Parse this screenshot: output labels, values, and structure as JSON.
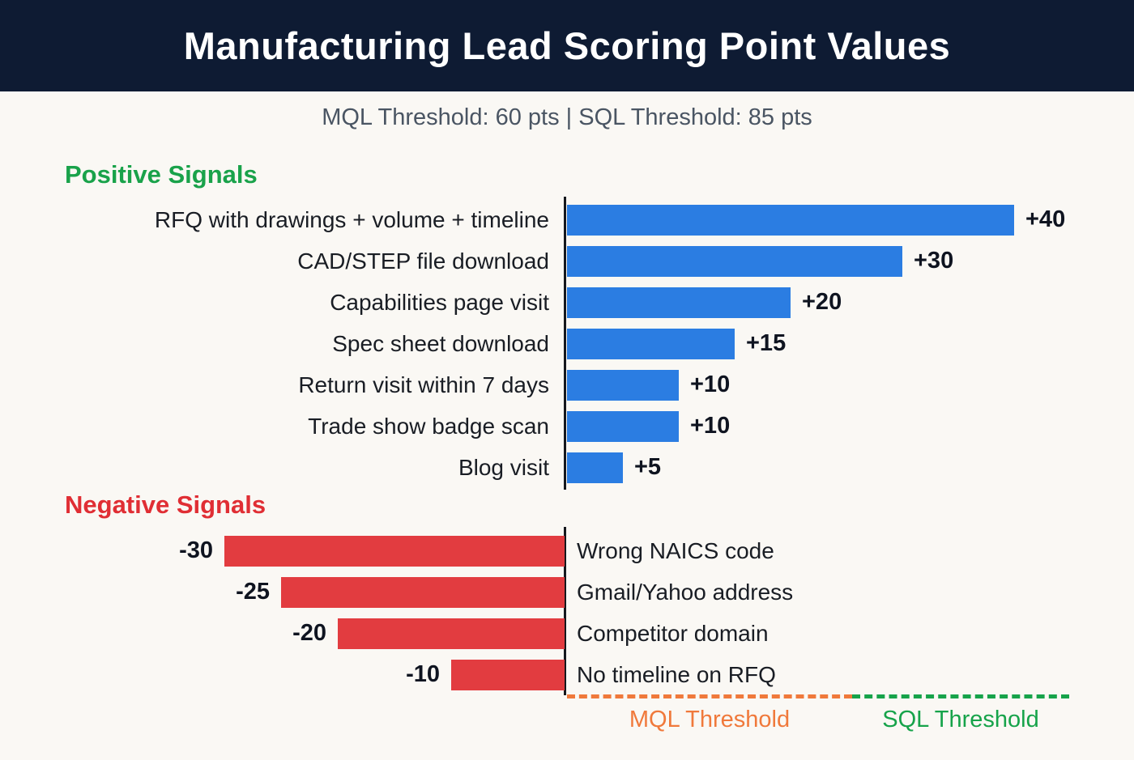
{
  "header": {
    "title": "Manufacturing Lead Scoring Point Values"
  },
  "subtitle": "MQL Threshold: 60 pts | SQL Threshold: 85 pts",
  "chart_data": {
    "type": "bar",
    "orientation": "horizontal-diverging",
    "title": "Manufacturing Lead Scoring Point Values",
    "subtitle": "MQL Threshold: 60 pts | SQL Threshold: 85 pts",
    "positive": {
      "heading": "Positive Signals",
      "heading_color": "#19a24a",
      "bar_color": "#2b7de2",
      "items": [
        {
          "label": "RFQ with drawings + volume + timeline",
          "value": 40,
          "display": "+40"
        },
        {
          "label": "CAD/STEP file download",
          "value": 30,
          "display": "+30"
        },
        {
          "label": "Capabilities page visit",
          "value": 20,
          "display": "+20"
        },
        {
          "label": "Spec sheet download",
          "value": 15,
          "display": "+15"
        },
        {
          "label": "Return visit within 7 days",
          "value": 10,
          "display": "+10"
        },
        {
          "label": "Trade show badge scan",
          "value": 10,
          "display": "+10"
        },
        {
          "label": "Blog visit",
          "value": 5,
          "display": "+5"
        }
      ]
    },
    "negative": {
      "heading": "Negative Signals",
      "heading_color": "#e02e34",
      "bar_color": "#e23c40",
      "items": [
        {
          "label": "Wrong NAICS code",
          "value": 30,
          "display": "-30"
        },
        {
          "label": "Gmail/Yahoo address",
          "value": 25,
          "display": "-25"
        },
        {
          "label": "Competitor domain",
          "value": 20,
          "display": "-20"
        },
        {
          "label": "No timeline on RFQ",
          "value": 10,
          "display": "-10"
        }
      ]
    },
    "thresholds": {
      "mql": {
        "label": "MQL Threshold",
        "value_pts": 60,
        "color": "#f0793b"
      },
      "sql": {
        "label": "SQL Threshold",
        "value_pts": 85,
        "color": "#16a34a"
      }
    },
    "colors": {
      "header_bg": "#0e1b33",
      "page_bg": "#faf8f4",
      "axis": "#15181d",
      "subtitle_text": "#4a5563",
      "label_text": "#191d24"
    },
    "xlim": [
      -30,
      40
    ],
    "grid": false,
    "legend": false
  }
}
